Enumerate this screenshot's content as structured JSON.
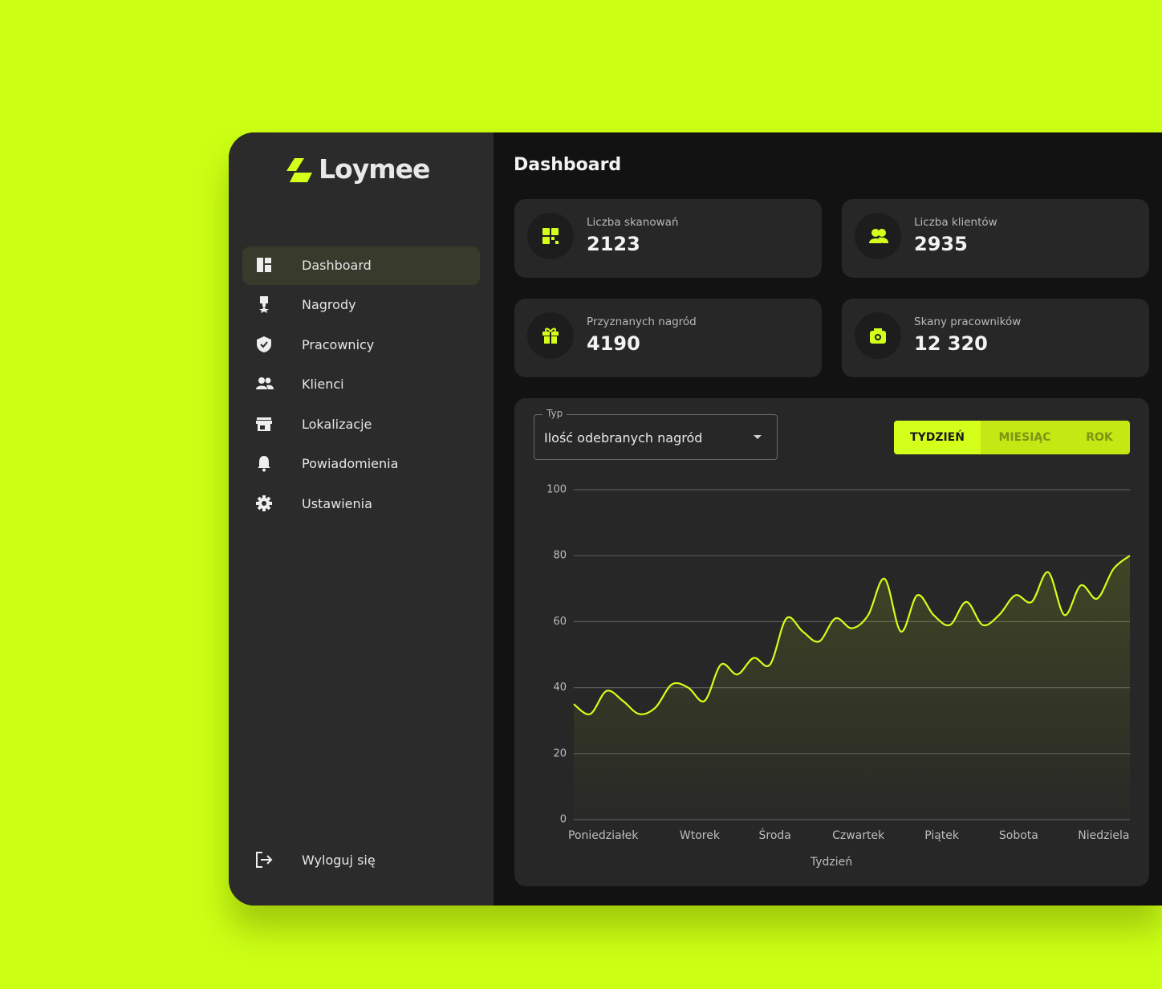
{
  "brand": "Loymee",
  "nav": [
    "Dashboard",
    "Nagrody",
    "Pracownicy",
    "Klienci",
    "Lokalizacje",
    "Powiadomienia",
    "Ustawienia"
  ],
  "logout": "Wyloguj się",
  "header": {
    "title": "Dashboard"
  },
  "stats": [
    {
      "label": "Liczba skanowań",
      "value": "2123"
    },
    {
      "label": "Liczba klientów",
      "value": "2935"
    },
    {
      "label": "Przyznanych nagród",
      "value": "4190"
    },
    {
      "label": "Skany pracowników",
      "value": "12 320"
    }
  ],
  "chart_data": {
    "type": "line",
    "select_label": "Typ",
    "select_value": "Ilość odebranych nagród",
    "periods": [
      "TYDZIEŃ",
      "MIESIĄC",
      "ROK"
    ],
    "x_label": "Tydzień",
    "x": [
      0,
      1,
      2,
      3,
      4,
      5,
      6,
      7,
      8,
      9,
      10,
      11,
      12,
      13,
      14,
      15,
      16,
      17,
      18,
      19,
      20,
      21,
      22,
      23,
      24,
      25,
      26,
      27,
      28,
      29,
      30,
      31,
      32,
      33,
      34
    ],
    "values": [
      35,
      32,
      39,
      36,
      32,
      34,
      41,
      40,
      36,
      47,
      44,
      49,
      47,
      61,
      57,
      54,
      61,
      58,
      62,
      73,
      57,
      68,
      62,
      59,
      66,
      59,
      62,
      68,
      66,
      75,
      62,
      71,
      67,
      76,
      80
    ],
    "color": "#d4ff1a",
    "xlim": [
      0,
      34
    ],
    "xticks": [
      {
        "value": 1.8,
        "label": "Poniedziałek"
      },
      {
        "value": 7.7,
        "label": "Wtorek"
      },
      {
        "value": 12.3,
        "label": "Środa"
      },
      {
        "value": 17.4,
        "label": "Czwartek"
      },
      {
        "value": 22.5,
        "label": "Piątek"
      },
      {
        "value": 27.2,
        "label": "Sobota"
      },
      {
        "value": 32.4,
        "label": "Niedziela"
      }
    ],
    "ylim": [
      0,
      100
    ],
    "yticks": [
      0,
      20,
      40,
      60,
      80,
      100
    ],
    "grid": true
  }
}
